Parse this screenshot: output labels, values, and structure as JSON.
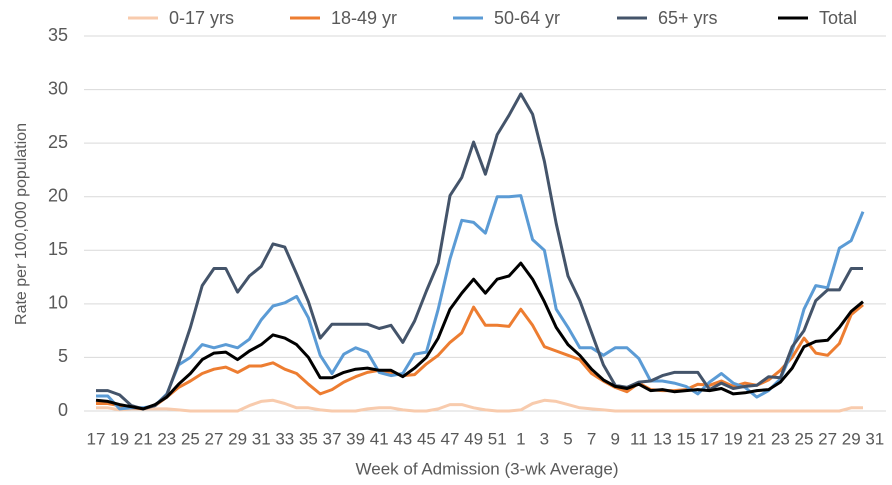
{
  "chart_data": {
    "type": "line",
    "x_label": "Week of Admission (3-wk Average)",
    "y_label": "Rate per 100,000 population",
    "categories": [
      "17",
      null,
      "19",
      null,
      "21",
      null,
      "23",
      null,
      "25",
      null,
      "27",
      null,
      "29",
      null,
      "31",
      null,
      "33",
      null,
      "35",
      null,
      "37",
      null,
      "39",
      null,
      "41",
      null,
      "43",
      null,
      "45",
      null,
      "47",
      null,
      "49",
      null,
      "51",
      null,
      "1",
      null,
      "3",
      null,
      "5",
      null,
      "7",
      null,
      "9",
      null,
      "11",
      null,
      "13",
      null,
      "15",
      null,
      "17",
      null,
      "19",
      null,
      "21",
      null,
      "23",
      null,
      "25",
      null,
      "27",
      null,
      "29",
      null,
      "31"
    ],
    "ylim": [
      0,
      35
    ],
    "yticks": [
      0,
      5,
      10,
      15,
      20,
      25,
      30,
      35
    ],
    "grid": true,
    "legend": "top",
    "series": [
      {
        "name": "0-17 yrs",
        "color": "#f8cbad",
        "values": [
          0.3,
          0.3,
          0.1,
          0.2,
          0.2,
          0.2,
          0.2,
          0.1,
          0,
          0,
          0,
          0,
          0,
          0.5,
          0.9,
          1.0,
          0.7,
          0.3,
          0.3,
          0.1,
          0,
          0,
          0,
          0.2,
          0.3,
          0.3,
          0.1,
          0,
          0,
          0.2,
          0.6,
          0.6,
          0.3,
          0.1,
          0,
          0,
          0.1,
          0.7,
          1.0,
          0.9,
          0.6,
          0.3,
          0.2,
          0.1,
          0,
          0,
          0,
          0,
          0,
          0,
          0,
          0,
          0,
          0,
          0,
          0,
          0,
          0,
          0,
          0,
          0,
          0,
          0,
          0,
          0.3,
          0.3,
          null
        ]
      },
      {
        "name": "18-49 yr",
        "color": "#ed7d31",
        "values": [
          0.7,
          0.7,
          0.5,
          0.3,
          0.2,
          0.5,
          1.3,
          2.2,
          2.8,
          3.5,
          3.9,
          4.1,
          3.6,
          4.2,
          4.2,
          4.5,
          3.9,
          3.5,
          2.5,
          1.6,
          2.0,
          2.7,
          3.2,
          3.6,
          3.8,
          3.6,
          3.3,
          3.4,
          4.4,
          5.2,
          6.4,
          7.3,
          9.7,
          8.0,
          8.0,
          7.9,
          9.5,
          8.0,
          6.0,
          5.6,
          5.2,
          4.8,
          3.5,
          2.8,
          2.2,
          1.8,
          2.6,
          2.0,
          1.9,
          1.9,
          2.0,
          2.5,
          2.4,
          2.8,
          2.3,
          2.6,
          2.4,
          2.9,
          3.8,
          5.0,
          6.8,
          5.4,
          5.2,
          6.3,
          9.0,
          9.9,
          null
        ]
      },
      {
        "name": "50-64 yr",
        "color": "#5b9bd5",
        "values": [
          1.4,
          1.4,
          0.2,
          0.3,
          0.3,
          0.5,
          1.6,
          4.3,
          5.0,
          6.2,
          5.9,
          6.2,
          5.9,
          6.7,
          8.5,
          9.8,
          10.1,
          10.7,
          8.7,
          5.2,
          3.5,
          5.3,
          5.9,
          5.5,
          3.6,
          3.3,
          3.5,
          5.3,
          5.5,
          9.5,
          14.2,
          17.8,
          17.6,
          16.6,
          20.0,
          20.0,
          20.1,
          16.0,
          15.0,
          9.5,
          7.8,
          5.9,
          5.9,
          5.2,
          5.9,
          5.9,
          4.9,
          2.8,
          2.8,
          2.6,
          2.3,
          1.6,
          2.7,
          3.5,
          2.6,
          2.2,
          1.3,
          1.9,
          3.0,
          5.6,
          9.5,
          11.7,
          11.5,
          15.2,
          15.9,
          18.6,
          null
        ]
      },
      {
        "name": "65+ yrs",
        "color": "#44546a",
        "values": [
          1.9,
          1.9,
          1.5,
          0.5,
          0.2,
          0.5,
          1.5,
          4.5,
          7.8,
          11.7,
          13.3,
          13.3,
          11.1,
          12.6,
          13.5,
          15.6,
          15.3,
          12.8,
          10.2,
          6.8,
          8.1,
          8.1,
          8.1,
          8.1,
          7.7,
          8.0,
          6.4,
          8.4,
          11.2,
          13.8,
          20.1,
          21.8,
          25.1,
          22.1,
          25.8,
          27.6,
          29.6,
          27.7,
          23.3,
          17.5,
          12.6,
          10.3,
          7.3,
          4.3,
          2.4,
          2.2,
          2.7,
          2.8,
          3.3,
          3.6,
          3.6,
          3.6,
          2.0,
          2.6,
          2.1,
          2.3,
          2.4,
          3.2,
          3.1,
          6.0,
          7.5,
          10.3,
          11.3,
          11.3,
          13.3,
          13.3,
          null
        ]
      },
      {
        "name": "Total",
        "color": "#000000",
        "values": [
          1.0,
          0.9,
          0.6,
          0.4,
          0.2,
          0.6,
          1.3,
          2.5,
          3.5,
          4.8,
          5.4,
          5.5,
          4.8,
          5.6,
          6.2,
          7.1,
          6.8,
          6.2,
          5.0,
          3.1,
          3.1,
          3.6,
          3.9,
          4.0,
          3.8,
          3.8,
          3.2,
          4.0,
          5.0,
          6.8,
          9.5,
          11.0,
          12.3,
          11.0,
          12.3,
          12.6,
          13.8,
          12.3,
          10.2,
          7.8,
          6.2,
          5.2,
          3.9,
          2.9,
          2.3,
          2.1,
          2.5,
          1.9,
          2.0,
          1.8,
          1.9,
          2.0,
          1.9,
          2.1,
          1.6,
          1.7,
          1.9,
          2.0,
          2.7,
          4.0,
          6.0,
          6.5,
          6.6,
          7.8,
          9.3,
          10.2,
          null
        ]
      }
    ]
  }
}
